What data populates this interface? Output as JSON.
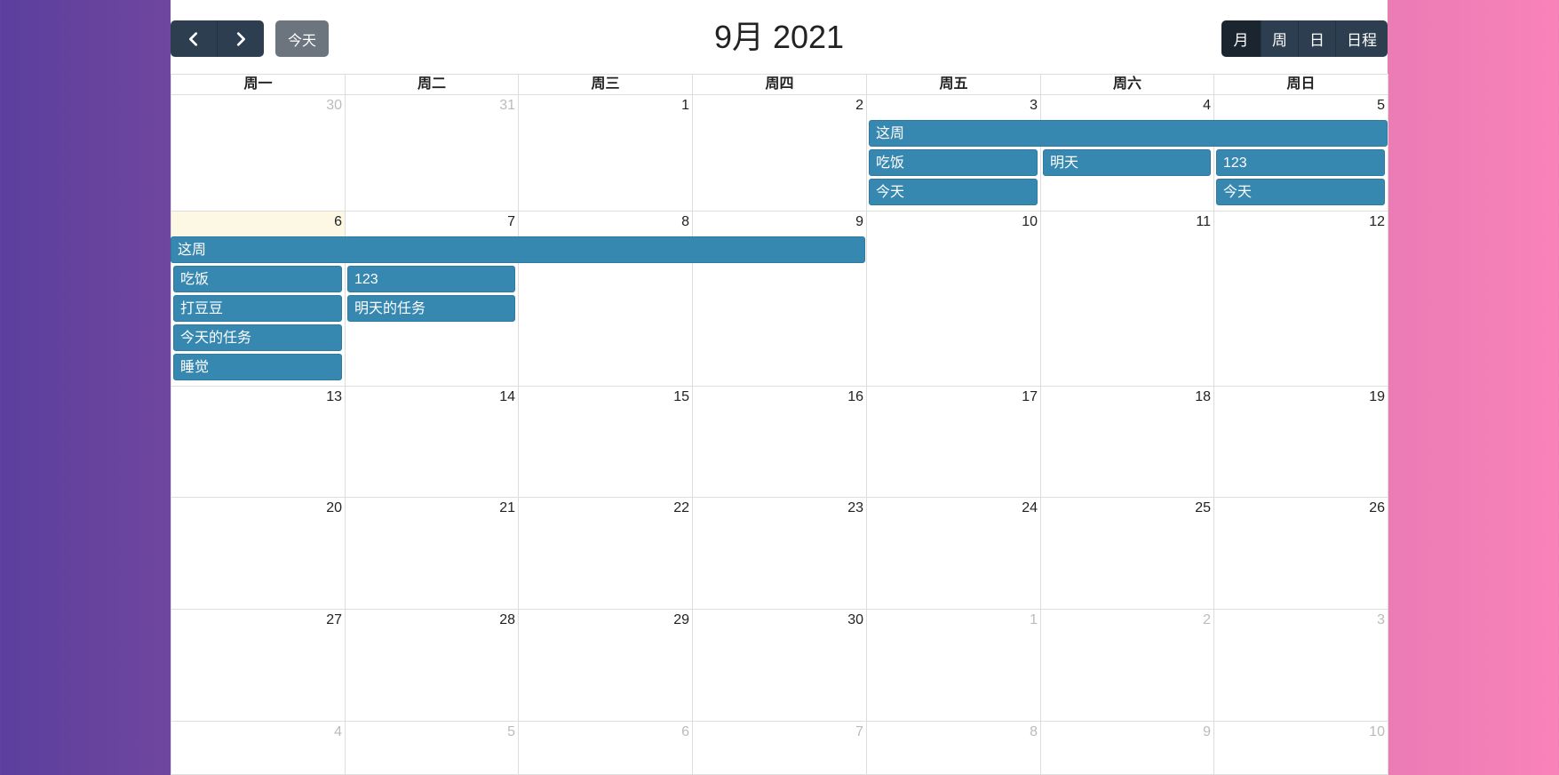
{
  "toolbar": {
    "prev_icon": "chevron-left-icon",
    "next_icon": "chevron-right-icon",
    "today_label": "今天",
    "title": "9月 2021",
    "views": [
      "月",
      "周",
      "日",
      "日程"
    ],
    "active_view": "月"
  },
  "weekdays": [
    "周一",
    "周二",
    "周三",
    "周四",
    "周五",
    "周六",
    "周日"
  ],
  "weeks": [
    {
      "days": [
        {
          "num": "30",
          "other": true
        },
        {
          "num": "31",
          "other": true
        },
        {
          "num": "1"
        },
        {
          "num": "2"
        },
        {
          "num": "3"
        },
        {
          "num": "4"
        },
        {
          "num": "5"
        }
      ]
    },
    {
      "days": [
        {
          "num": "6",
          "today": true
        },
        {
          "num": "7"
        },
        {
          "num": "8"
        },
        {
          "num": "9"
        },
        {
          "num": "10"
        },
        {
          "num": "11"
        },
        {
          "num": "12"
        }
      ]
    },
    {
      "days": [
        {
          "num": "13"
        },
        {
          "num": "14"
        },
        {
          "num": "15"
        },
        {
          "num": "16"
        },
        {
          "num": "17"
        },
        {
          "num": "18"
        },
        {
          "num": "19"
        }
      ]
    },
    {
      "days": [
        {
          "num": "20"
        },
        {
          "num": "21"
        },
        {
          "num": "22"
        },
        {
          "num": "23"
        },
        {
          "num": "24"
        },
        {
          "num": "25"
        },
        {
          "num": "26"
        }
      ]
    },
    {
      "days": [
        {
          "num": "27"
        },
        {
          "num": "28"
        },
        {
          "num": "29"
        },
        {
          "num": "30"
        },
        {
          "num": "1",
          "other": true
        },
        {
          "num": "2",
          "other": true
        },
        {
          "num": "3",
          "other": true
        }
      ]
    },
    {
      "days": [
        {
          "num": "4",
          "other": true
        },
        {
          "num": "5",
          "other": true
        },
        {
          "num": "6",
          "other": true
        },
        {
          "num": "7",
          "other": true
        },
        {
          "num": "8",
          "other": true
        },
        {
          "num": "9",
          "other": true
        },
        {
          "num": "10",
          "other": true
        }
      ]
    }
  ],
  "events": [
    {
      "week": 0,
      "col": 4,
      "span": 3,
      "row": 0,
      "title": "这周"
    },
    {
      "week": 0,
      "col": 4,
      "span": 1,
      "row": 1,
      "title": "吃饭"
    },
    {
      "week": 0,
      "col": 5,
      "span": 1,
      "row": 1,
      "title": "明天"
    },
    {
      "week": 0,
      "col": 6,
      "span": 1,
      "row": 1,
      "title": "123"
    },
    {
      "week": 0,
      "col": 4,
      "span": 1,
      "row": 2,
      "title": "今天"
    },
    {
      "week": 0,
      "col": 6,
      "span": 1,
      "row": 2,
      "title": "今天"
    },
    {
      "week": 1,
      "col": 0,
      "span": 4,
      "row": 0,
      "title": "这周"
    },
    {
      "week": 1,
      "col": 0,
      "span": 1,
      "row": 1,
      "title": "吃饭"
    },
    {
      "week": 1,
      "col": 1,
      "span": 1,
      "row": 1,
      "title": "123"
    },
    {
      "week": 1,
      "col": 0,
      "span": 1,
      "row": 2,
      "title": "打豆豆"
    },
    {
      "week": 1,
      "col": 1,
      "span": 1,
      "row": 2,
      "title": "明天的任务"
    },
    {
      "week": 1,
      "col": 0,
      "span": 1,
      "row": 3,
      "title": "今天的任务"
    },
    {
      "week": 1,
      "col": 0,
      "span": 1,
      "row": 4,
      "title": "睡觉"
    }
  ],
  "colors": {
    "event": "#3788b0",
    "button_dark": "#2c3e50",
    "button_today": "#6c757d",
    "today_highlight": "#fcf8e3"
  }
}
